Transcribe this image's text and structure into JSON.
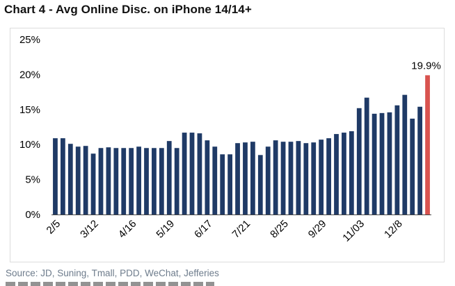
{
  "title": "Chart 4 - Avg Online Disc. on iPhone 14/14+",
  "source": "Source: JD, Suning, Tmall, PDD, WeChat, Jefferies",
  "colors": {
    "bar": "#1f3a66",
    "highlight": "#d9534f"
  },
  "chart_data": {
    "type": "bar",
    "ylim": [
      0,
      25
    ],
    "y_ticks": [
      "0%",
      "5%",
      "10%",
      "15%",
      "20%",
      "25%"
    ],
    "x_tick_labels": [
      "2/5",
      "3/12",
      "4/16",
      "5/19",
      "6/17",
      "7/21",
      "8/25",
      "9/29",
      "11/03",
      "12/8"
    ],
    "x_tick_positions": [
      0,
      5,
      10,
      15,
      20,
      25,
      30,
      35,
      40,
      45
    ],
    "values": [
      10.9,
      10.9,
      10.1,
      9.7,
      9.8,
      8.7,
      9.5,
      9.6,
      9.5,
      9.5,
      9.5,
      9.7,
      9.5,
      9.5,
      9.5,
      10.5,
      9.5,
      11.7,
      11.7,
      11.6,
      10.6,
      9.7,
      8.6,
      8.6,
      10.2,
      10.3,
      10.4,
      8.5,
      9.7,
      10.6,
      10.4,
      10.4,
      10.5,
      10.2,
      10.3,
      10.7,
      10.9,
      11.5,
      11.7,
      11.9,
      15.2,
      16.7,
      14.4,
      14.5,
      14.6,
      15.6,
      17.1,
      13.7,
      15.4,
      19.9
    ],
    "highlight_index": 49,
    "data_labels": [
      {
        "index": 49,
        "text": "19.9%"
      }
    ],
    "grid": false,
    "legend": "none"
  }
}
